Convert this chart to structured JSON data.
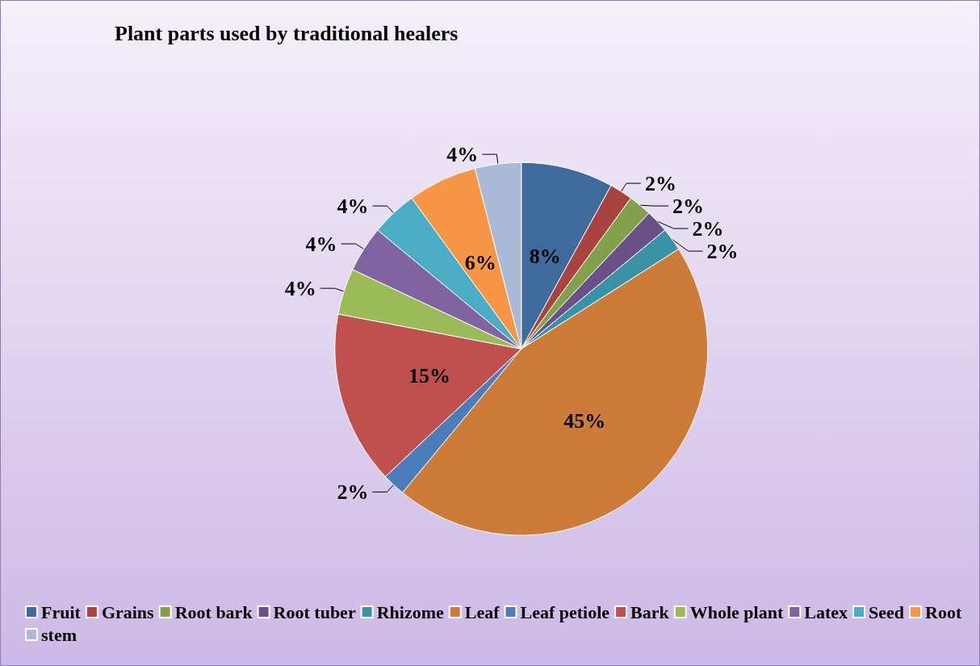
{
  "chart_data": {
    "type": "pie",
    "title": "Plant parts used by traditional healers",
    "categories": [
      "Fruit",
      "Grains",
      "Root bark",
      "Root tuber",
      "Rhizome",
      "Leaf",
      "Leaf petiole",
      "Bark",
      "Whole plant",
      "Latex",
      "Seed",
      "Root",
      "stem"
    ],
    "values": [
      8,
      2,
      2,
      2,
      2,
      45,
      2,
      15,
      4,
      4,
      4,
      6,
      4
    ],
    "colors": [
      "#3f6a9c",
      "#a84340",
      "#83a14a",
      "#6a5289",
      "#3a92a7",
      "#cc7b38",
      "#4a7ebb",
      "#c0504d",
      "#9bbb59",
      "#8064a2",
      "#4bacc6",
      "#f79646",
      "#a9b9d6"
    ],
    "value_labels": [
      "8%",
      "2%",
      "2%",
      "2%",
      "2%",
      "45%",
      "2%",
      "15%",
      "4%",
      "4%",
      "4%",
      "6%",
      "4%"
    ],
    "legend": "bottom"
  }
}
